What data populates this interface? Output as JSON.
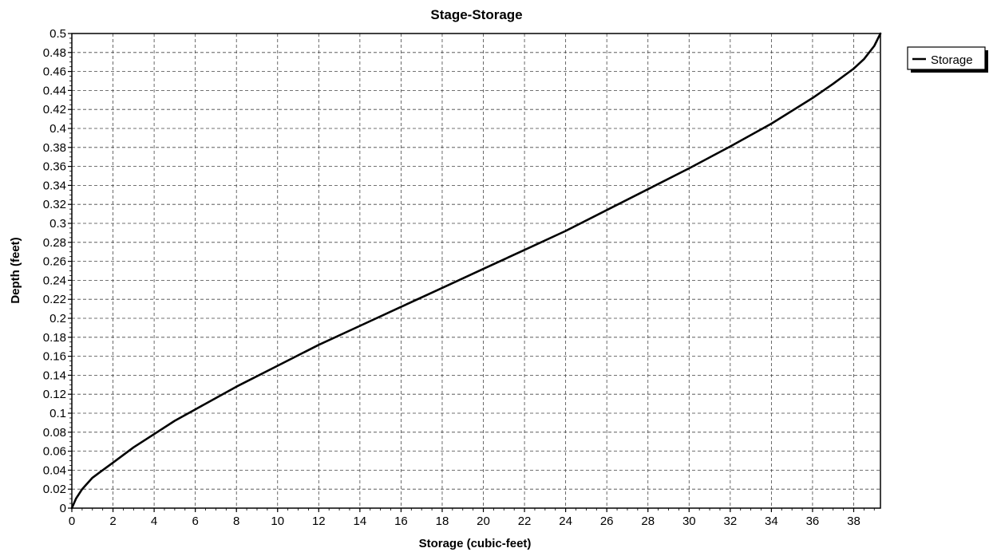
{
  "chart_data": {
    "type": "line",
    "title": "Stage-Storage",
    "xlabel": "Storage (cubic-feet)",
    "ylabel": "Depth  (feet)",
    "xlim": [
      0,
      39.3
    ],
    "ylim": [
      0,
      0.5
    ],
    "x_ticks": [
      0,
      2,
      4,
      6,
      8,
      10,
      12,
      14,
      16,
      18,
      20,
      22,
      24,
      26,
      28,
      30,
      32,
      34,
      36,
      38
    ],
    "x_tick_labels": [
      "0",
      "2",
      "4",
      "6",
      "8",
      "10",
      "12",
      "14",
      "16",
      "18",
      "20",
      "22",
      "24",
      "26",
      "28",
      "30",
      "32",
      "34",
      "36",
      "38"
    ],
    "y_ticks": [
      0,
      0.02,
      0.04,
      0.06,
      0.08,
      0.1,
      0.12,
      0.14,
      0.16,
      0.18,
      0.2,
      0.22,
      0.24,
      0.26,
      0.28,
      0.3,
      0.32,
      0.34,
      0.36,
      0.38,
      0.4,
      0.42,
      0.44,
      0.46,
      0.48,
      0.5
    ],
    "y_tick_labels": [
      "0",
      "0.02",
      "0.04",
      "0.06",
      "0.08",
      "0.1",
      "0.12",
      "0.14",
      "0.16",
      "0.18",
      "0.2",
      "0.22",
      "0.24",
      "0.26",
      "0.28",
      "0.3",
      "0.32",
      "0.34",
      "0.36",
      "0.38",
      "0.4",
      "0.42",
      "0.44",
      "0.46",
      "0.48",
      "0.5"
    ],
    "grid": true,
    "grid_style": "dashed",
    "legend_position": "top-right, outside plot",
    "series": [
      {
        "name": "Storage",
        "color": "#000000",
        "x": [
          0,
          0.2,
          0.5,
          1.0,
          2.0,
          3.0,
          4.0,
          5.0,
          6.0,
          8.0,
          10.0,
          12.0,
          14.0,
          16.0,
          18.0,
          20.0,
          22.0,
          24.0,
          26.0,
          28.0,
          30.0,
          32.0,
          34.0,
          36.0,
          37.0,
          38.0,
          38.5,
          39.0,
          39.3
        ],
        "y": [
          0,
          0.01,
          0.02,
          0.032,
          0.048,
          0.064,
          0.078,
          0.092,
          0.104,
          0.128,
          0.15,
          0.172,
          0.192,
          0.212,
          0.232,
          0.252,
          0.272,
          0.292,
          0.314,
          0.336,
          0.358,
          0.381,
          0.405,
          0.432,
          0.447,
          0.463,
          0.473,
          0.487,
          0.5
        ]
      }
    ]
  }
}
